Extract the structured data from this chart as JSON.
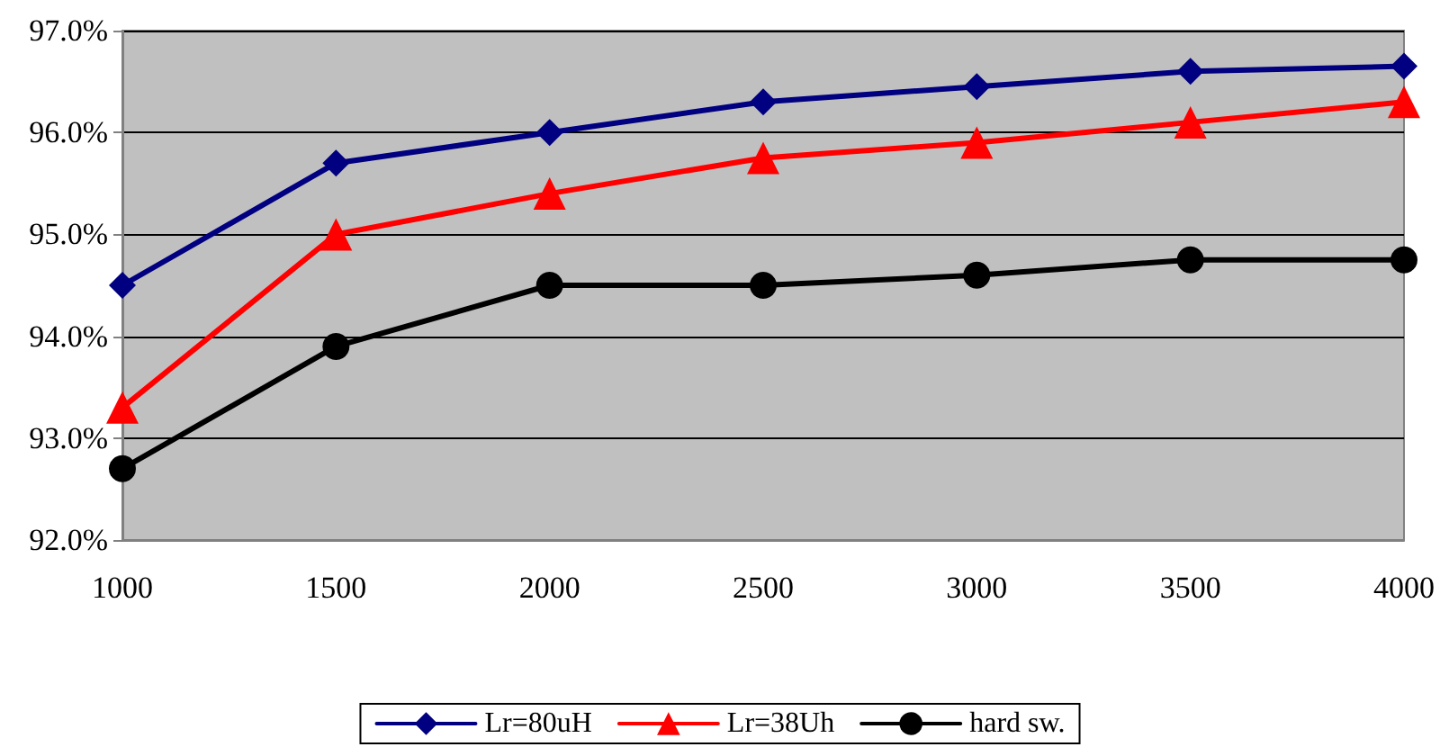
{
  "chart_data": {
    "type": "line",
    "categories": [
      "1000",
      "1500",
      "2000",
      "2500",
      "3000",
      "3500",
      "4000"
    ],
    "series": [
      {
        "name": "Lr=80uH",
        "color": "#000080",
        "marker": "diamond",
        "values": [
          94.5,
          95.7,
          96.0,
          96.3,
          96.45,
          96.6,
          96.65
        ]
      },
      {
        "name": "Lr=38Uh",
        "color": "#ff0000",
        "marker": "triangle",
        "values": [
          93.3,
          95.0,
          95.4,
          95.75,
          95.9,
          96.1,
          96.3
        ]
      },
      {
        "name": "hard sw.",
        "color": "#000000",
        "marker": "circle",
        "values": [
          92.7,
          93.9,
          94.5,
          94.5,
          94.6,
          94.75,
          94.75
        ]
      }
    ],
    "ylim": [
      92,
      97
    ],
    "yticks": [
      {
        "value": 92,
        "label": "92.0%"
      },
      {
        "value": 93,
        "label": "93.0%"
      },
      {
        "value": 94,
        "label": "94.0%"
      },
      {
        "value": 95,
        "label": "95.0%"
      },
      {
        "value": 96,
        "label": "96.0%"
      },
      {
        "value": 97,
        "label": "97.0%"
      }
    ],
    "grid": "y",
    "legend": "bottom",
    "line_style": "solid"
  }
}
